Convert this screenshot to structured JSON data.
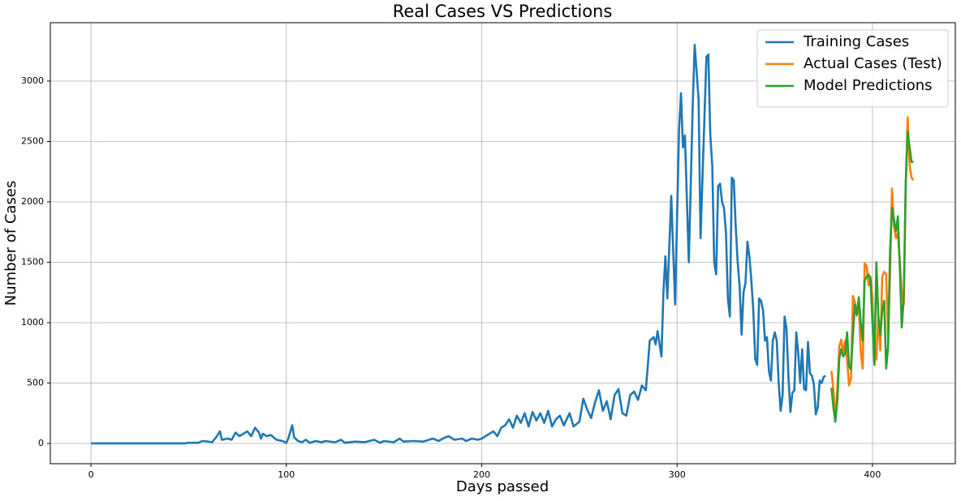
{
  "chart_data": {
    "type": "line",
    "title": "Real Cases VS Predictions",
    "x_label": "Days passed",
    "y_label": "Number of Cases",
    "xlim": [
      -20.8,
      442.4
    ],
    "ylim": [
      -168,
      3483
    ],
    "xticks": [
      0,
      100,
      200,
      300,
      400
    ],
    "yticks": [
      0,
      500,
      1000,
      1500,
      2000,
      2500,
      3000
    ],
    "grid": true,
    "legend": "upper right",
    "series": [
      {
        "name": "Training Cases",
        "color": "#1f77b4",
        "x": [
          0,
          48,
          50,
          55,
          57,
          60,
          62,
          64,
          66,
          67,
          70,
          72,
          74,
          76,
          78,
          80,
          82,
          84,
          86,
          87,
          88,
          90,
          92,
          95,
          98,
          100,
          101,
          103,
          104,
          106,
          108,
          110,
          112,
          115,
          118,
          120,
          125,
          128,
          130,
          135,
          140,
          145,
          148,
          150,
          155,
          158,
          160,
          165,
          170,
          175,
          178,
          180,
          183,
          186,
          190,
          192,
          195,
          198,
          200,
          203,
          206,
          208,
          210,
          212,
          214,
          216,
          218,
          220,
          222,
          224,
          226,
          228,
          230,
          232,
          234,
          236,
          238,
          240,
          242,
          245,
          247,
          250,
          252,
          254,
          256,
          258,
          260,
          262,
          264,
          266,
          268,
          270,
          272,
          274,
          276,
          278,
          280,
          282,
          284,
          286,
          288,
          289,
          290,
          292,
          293,
          294,
          295,
          297,
          299,
          301,
          302,
          303,
          304,
          306,
          308,
          309,
          311,
          312,
          314,
          315,
          316,
          317,
          318,
          319,
          320,
          321,
          322,
          323,
          324,
          325,
          326,
          327,
          328,
          329,
          330,
          331,
          332,
          333,
          334,
          335,
          336,
          337,
          338,
          339,
          340,
          341,
          342,
          343,
          344,
          345,
          346,
          347,
          348,
          349,
          350,
          351,
          352,
          353,
          354,
          355,
          356,
          357,
          358,
          359,
          360,
          361,
          362,
          363,
          364,
          365,
          366,
          367,
          368,
          369,
          370,
          371,
          372,
          373,
          374,
          375,
          376
        ],
        "values": [
          0,
          0,
          5,
          5,
          20,
          15,
          10,
          50,
          100,
          30,
          40,
          30,
          90,
          60,
          80,
          100,
          60,
          130,
          90,
          40,
          80,
          60,
          70,
          30,
          20,
          5,
          40,
          150,
          50,
          20,
          10,
          30,
          5,
          20,
          10,
          20,
          10,
          30,
          5,
          15,
          10,
          30,
          5,
          20,
          10,
          40,
          15,
          20,
          15,
          40,
          20,
          40,
          60,
          30,
          40,
          20,
          40,
          30,
          40,
          70,
          100,
          60,
          130,
          150,
          200,
          130,
          230,
          170,
          250,
          140,
          260,
          190,
          250,
          170,
          270,
          140,
          200,
          230,
          150,
          250,
          140,
          180,
          370,
          280,
          210,
          340,
          440,
          270,
          350,
          200,
          400,
          450,
          250,
          230,
          400,
          430,
          360,
          480,
          440,
          850,
          880,
          820,
          930,
          720,
          1250,
          1550,
          1200,
          2050,
          1150,
          2600,
          2900,
          2450,
          2550,
          1500,
          2800,
          3300,
          2850,
          1700,
          2700,
          3200,
          3220,
          2550,
          2300,
          1500,
          1400,
          2130,
          2150,
          2000,
          1950,
          1750,
          1200,
          1050,
          2200,
          2180,
          1800,
          1500,
          1300,
          900,
          1250,
          1330,
          1670,
          1550,
          1350,
          1100,
          700,
          650,
          1200,
          1180,
          1100,
          850,
          880,
          600,
          520,
          850,
          920,
          850,
          500,
          270,
          400,
          1050,
          950,
          550,
          260,
          420,
          440,
          920,
          750,
          500,
          780,
          450,
          440,
          840,
          580,
          560,
          490,
          240,
          300,
          520,
          500,
          550,
          560
        ]
      },
      {
        "name": "Actual Cases (Test)",
        "color": "#ff7f0e",
        "x": [
          379,
          380,
          381,
          382,
          383,
          384,
          385,
          386,
          387,
          388,
          389,
          390,
          391,
          392,
          393,
          394,
          395,
          396,
          397,
          398,
          399,
          400,
          401,
          402,
          403,
          404,
          405,
          406,
          407,
          408,
          409,
          410,
          411,
          412,
          413,
          414,
          415,
          416,
          417,
          418,
          419,
          420,
          421
        ],
        "values": [
          600,
          450,
          200,
          450,
          800,
          860,
          750,
          850,
          700,
          480,
          540,
          1220,
          1170,
          1070,
          1150,
          760,
          620,
          1490,
          1470,
          1310,
          1380,
          1200,
          680,
          700,
          1050,
          770,
          1380,
          1420,
          1400,
          880,
          1400,
          2110,
          1800,
          1700,
          1750,
          1500,
          1250,
          1150,
          2100,
          2700,
          2300,
          2200,
          2180
        ]
      },
      {
        "name": "Model Predictions",
        "color": "#2ca02c",
        "x": [
          379,
          380,
          381,
          382,
          383,
          384,
          385,
          386,
          387,
          388,
          389,
          390,
          391,
          392,
          393,
          394,
          395,
          396,
          397,
          398,
          399,
          400,
          401,
          402,
          403,
          404,
          405,
          406,
          407,
          408,
          409,
          410,
          411,
          412,
          413,
          414,
          415,
          416,
          417,
          418,
          419,
          420,
          421
        ],
        "values": [
          460,
          300,
          180,
          350,
          700,
          780,
          720,
          740,
          920,
          640,
          610,
          900,
          1150,
          1060,
          1210,
          1000,
          850,
          1350,
          1380,
          1400,
          1350,
          1000,
          650,
          1500,
          1050,
          900,
          1100,
          1180,
          620,
          800,
          1600,
          1950,
          1850,
          1760,
          1880,
          1450,
          960,
          1200,
          2150,
          2580,
          2450,
          2330,
          2330
        ]
      }
    ]
  }
}
